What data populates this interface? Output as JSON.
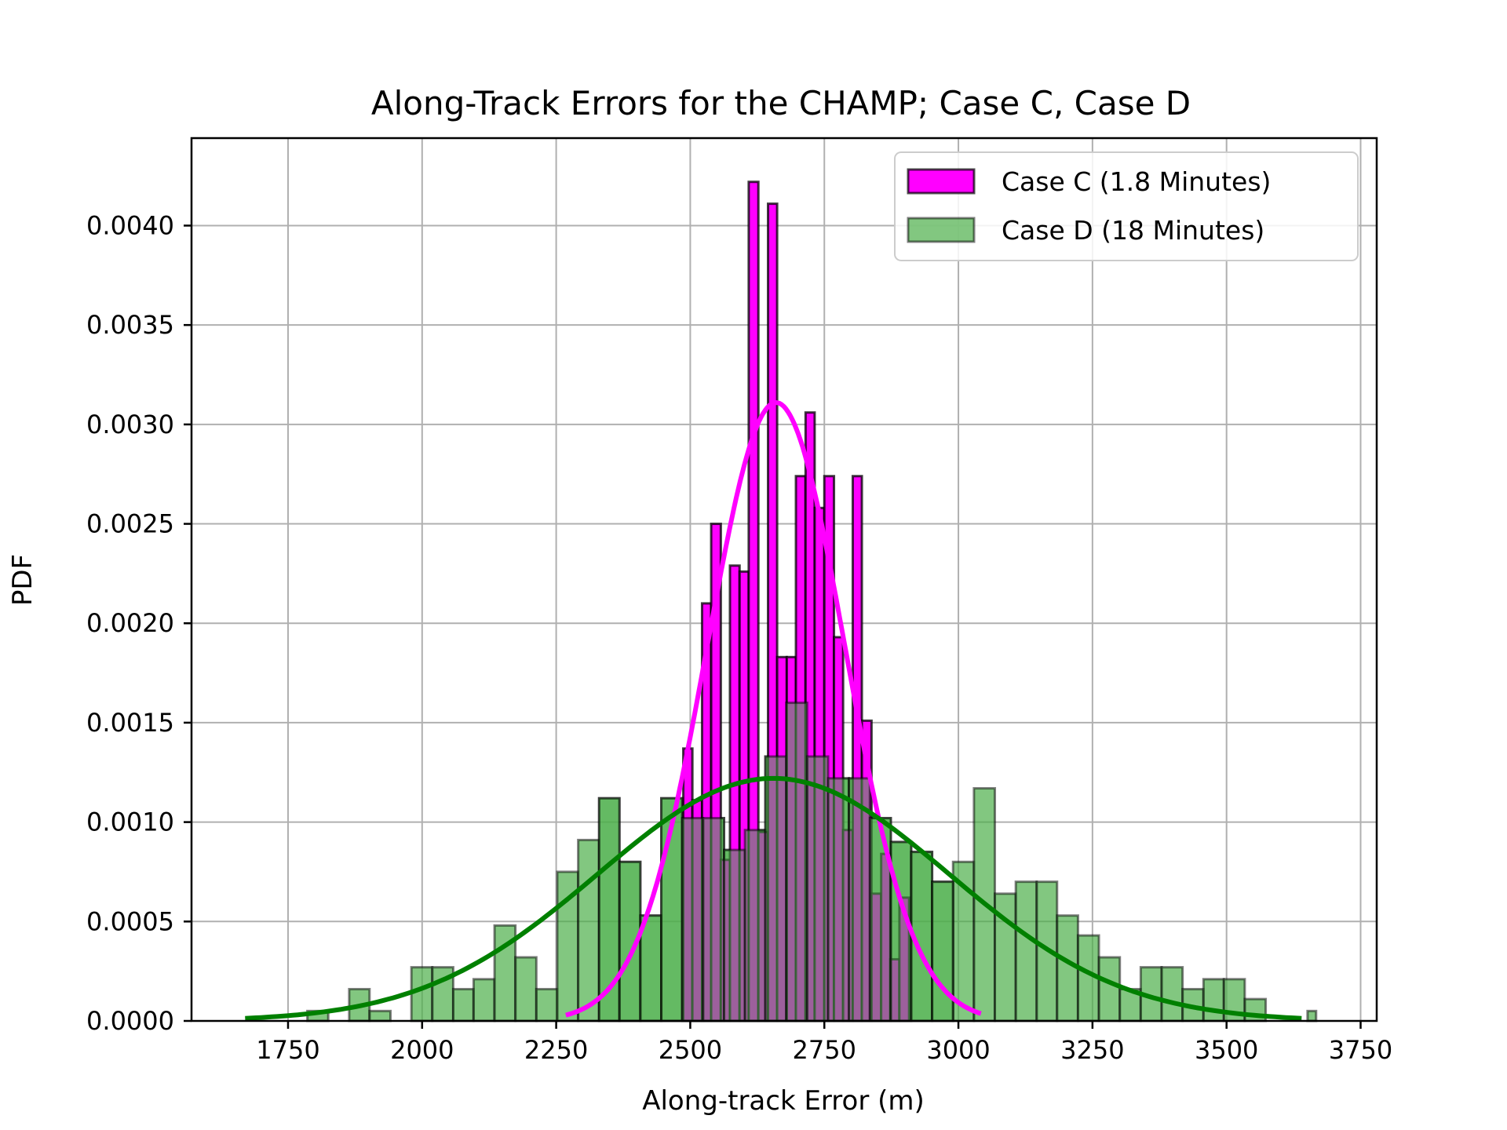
{
  "chart_data": {
    "type": "histogram",
    "title": "Along-Track Errors for the CHAMP; Case C, Case D",
    "xlabel": "Along-track Error (m)",
    "ylabel": "PDF",
    "xlim": [
      1570,
      3780
    ],
    "ylim": [
      0,
      0.00444
    ],
    "grid": true,
    "legend_position": "top-right",
    "x_ticks": [
      "1750",
      "2000",
      "2250",
      "2500",
      "2750",
      "3000",
      "3250",
      "3500",
      "3750"
    ],
    "x_tick_values": [
      1750,
      2000,
      2250,
      2500,
      2750,
      3000,
      3250,
      3500,
      3750
    ],
    "y_ticks": [
      "0.0000",
      "0.0005",
      "0.0010",
      "0.0015",
      "0.0020",
      "0.0025",
      "0.0030",
      "0.0035",
      "0.0040"
    ],
    "y_tick_values": [
      0,
      0.0005,
      0.001,
      0.0015,
      0.002,
      0.0025,
      0.003,
      0.0035,
      0.004
    ],
    "series": [
      {
        "name": "Case D (18 Minutes)",
        "kind": "histogram",
        "color": "#4daf4a",
        "bin_edges": [
          1786,
          1825,
          1864,
          1902,
          1941,
          1980,
          2019,
          2058,
          2096,
          2135,
          2174,
          2213,
          2252,
          2291,
          2330,
          2368,
          2407,
          2446,
          2485,
          2524,
          2563,
          2602,
          2640,
          2679,
          2718,
          2757,
          2796,
          2835,
          2874,
          2912,
          2951,
          2990,
          3029,
          3068,
          3107,
          3146,
          3184,
          3223,
          3262,
          3301,
          3340,
          3379,
          3418,
          3457,
          3495,
          3534,
          3573,
          3612,
          3651,
          3667
        ],
        "values": [
          5e-05,
          0,
          0.00016,
          5e-05,
          0,
          0.00027,
          0.00027,
          0.00016,
          0.00021,
          0.00048,
          0.00032,
          0.00016,
          0.00075,
          0.00091,
          0.00112,
          0.0008,
          0.00053,
          0.00112,
          0.00102,
          0.00102,
          0.00086,
          0.00096,
          0.00133,
          0.0016,
          0.00133,
          0.00122,
          0.00122,
          0.00102,
          0.0009,
          0.00085,
          0.0007,
          0.0008,
          0.00117,
          0.00064,
          0.0007,
          0.0007,
          0.00053,
          0.00043,
          0.00032,
          0.00016,
          0.00027,
          0.00027,
          0.00016,
          0.00021,
          0.00021,
          0.00011,
          0,
          0,
          5e-05
        ]
      },
      {
        "name": "Case C (1.8 Minutes)",
        "kind": "histogram",
        "color": "#ff00ff",
        "bin_edges": [
          2273,
          2368,
          2446,
          2487,
          2504,
          2522,
          2539,
          2557,
          2574,
          2592,
          2609,
          2627,
          2645,
          2662,
          2680,
          2697,
          2715,
          2732,
          2750,
          2768,
          2785,
          2803,
          2820,
          2838,
          2856,
          2873,
          2890,
          2908,
          3045
        ],
        "values": [
          0,
          0,
          0,
          0.00137,
          0.00111,
          0.0021,
          0.0025,
          0.00081,
          0.00229,
          0.00226,
          0.00422,
          0.00095,
          0.00411,
          0.00183,
          0.00183,
          0.00274,
          0.00306,
          0.00258,
          0.00274,
          0.00193,
          0.00096,
          0.00274,
          0.00151,
          0.00064,
          0.00084,
          0.00031,
          0.00062,
          0
        ]
      },
      {
        "name": "Case C fit",
        "kind": "line",
        "color": "#ff00ff",
        "mean": 2660,
        "peak": 0.00311,
        "x_range": [
          2268,
          3042
        ]
      },
      {
        "name": "Case D fit",
        "kind": "line",
        "color": "#008000",
        "mean": 2655,
        "peak": 0.00122,
        "x_range": [
          1670,
          3640
        ]
      }
    ]
  }
}
